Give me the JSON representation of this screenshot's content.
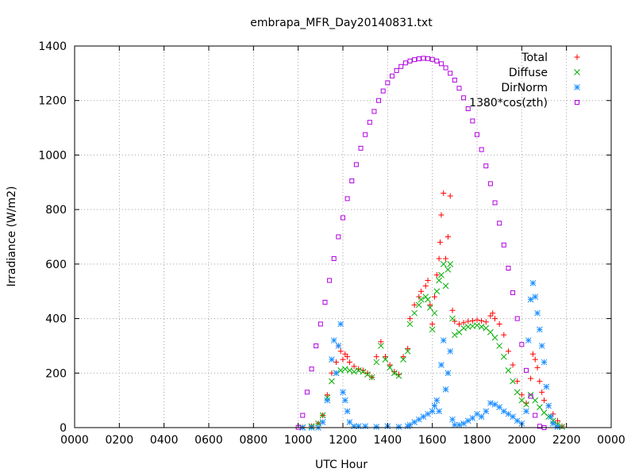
{
  "chart_data": {
    "type": "scatter",
    "title": "embrapa_MFR_Day20140831.txt",
    "xlabel": "UTC Hour",
    "ylabel": "Irradiance (W/m2)",
    "xlim": [
      0,
      24
    ],
    "ylim": [
      0,
      1400
    ],
    "xtick_values": [
      0,
      2,
      4,
      6,
      8,
      10,
      12,
      14,
      16,
      18,
      20,
      22,
      24
    ],
    "xtick_labels": [
      "0000",
      "0200",
      "0400",
      "0600",
      "0800",
      "1000",
      "1200",
      "1400",
      "1600",
      "1800",
      "2000",
      "2200",
      "0000"
    ],
    "ytick_values": [
      0,
      200,
      400,
      600,
      800,
      1000,
      1200,
      1400
    ],
    "ytick_labels": [
      "0",
      "200",
      "400",
      "600",
      "800",
      "1000",
      "1200",
      "1400"
    ],
    "grid": true,
    "legend_position": "top-right",
    "series": [
      {
        "name": "Total",
        "marker": "plus",
        "color": "#ff0000",
        "points": [
          [
            10.2,
            1
          ],
          [
            10.6,
            5
          ],
          [
            10.9,
            15
          ],
          [
            11.1,
            45
          ],
          [
            11.3,
            120
          ],
          [
            11.5,
            200
          ],
          [
            11.7,
            240
          ],
          [
            11.8,
            300
          ],
          [
            11.9,
            280
          ],
          [
            12.0,
            250
          ],
          [
            12.1,
            270
          ],
          [
            12.2,
            260
          ],
          [
            12.3,
            240
          ],
          [
            12.5,
            225
          ],
          [
            12.7,
            215
          ],
          [
            12.9,
            210
          ],
          [
            13.1,
            200
          ],
          [
            13.3,
            185
          ],
          [
            13.5,
            260
          ],
          [
            13.7,
            315
          ],
          [
            13.9,
            260
          ],
          [
            14.1,
            230
          ],
          [
            14.3,
            205
          ],
          [
            14.5,
            195
          ],
          [
            14.7,
            260
          ],
          [
            14.9,
            290
          ],
          [
            15.0,
            400
          ],
          [
            15.2,
            450
          ],
          [
            15.4,
            480
          ],
          [
            15.5,
            500
          ],
          [
            15.7,
            520
          ],
          [
            15.8,
            540
          ],
          [
            15.9,
            450
          ],
          [
            16.0,
            380
          ],
          [
            16.1,
            480
          ],
          [
            16.2,
            560
          ],
          [
            16.3,
            620
          ],
          [
            16.35,
            680
          ],
          [
            16.4,
            780
          ],
          [
            16.5,
            860
          ],
          [
            16.6,
            620
          ],
          [
            16.7,
            700
          ],
          [
            16.8,
            850
          ],
          [
            16.9,
            430
          ],
          [
            17.0,
            390
          ],
          [
            17.2,
            380
          ],
          [
            17.4,
            385
          ],
          [
            17.6,
            390
          ],
          [
            17.8,
            392
          ],
          [
            18.0,
            395
          ],
          [
            18.2,
            392
          ],
          [
            18.4,
            388
          ],
          [
            18.6,
            410
          ],
          [
            18.7,
            420
          ],
          [
            18.8,
            400
          ],
          [
            19.0,
            380
          ],
          [
            19.2,
            340
          ],
          [
            19.4,
            280
          ],
          [
            19.6,
            230
          ],
          [
            19.8,
            170
          ],
          [
            20.0,
            120
          ],
          [
            20.2,
            90
          ],
          [
            20.4,
            180
          ],
          [
            20.5,
            270
          ],
          [
            20.6,
            250
          ],
          [
            20.7,
            220
          ],
          [
            20.8,
            170
          ],
          [
            20.9,
            130
          ],
          [
            21.0,
            100
          ],
          [
            21.2,
            80
          ],
          [
            21.4,
            50
          ],
          [
            21.6,
            25
          ],
          [
            21.8,
            5
          ]
        ]
      },
      {
        "name": "Diffuse",
        "marker": "cross",
        "color": "#00b000",
        "points": [
          [
            10.2,
            1
          ],
          [
            10.6,
            5
          ],
          [
            10.9,
            15
          ],
          [
            11.1,
            45
          ],
          [
            11.3,
            110
          ],
          [
            11.5,
            170
          ],
          [
            11.7,
            200
          ],
          [
            11.9,
            210
          ],
          [
            12.1,
            215
          ],
          [
            12.3,
            210
          ],
          [
            12.5,
            205
          ],
          [
            12.7,
            210
          ],
          [
            12.9,
            205
          ],
          [
            13.1,
            195
          ],
          [
            13.3,
            185
          ],
          [
            13.5,
            240
          ],
          [
            13.7,
            300
          ],
          [
            13.9,
            250
          ],
          [
            14.1,
            220
          ],
          [
            14.3,
            200
          ],
          [
            14.5,
            190
          ],
          [
            14.7,
            250
          ],
          [
            14.9,
            280
          ],
          [
            15.0,
            380
          ],
          [
            15.2,
            420
          ],
          [
            15.4,
            450
          ],
          [
            15.5,
            470
          ],
          [
            15.7,
            480
          ],
          [
            15.8,
            470
          ],
          [
            15.9,
            440
          ],
          [
            16.0,
            360
          ],
          [
            16.1,
            420
          ],
          [
            16.2,
            500
          ],
          [
            16.3,
            540
          ],
          [
            16.4,
            560
          ],
          [
            16.5,
            600
          ],
          [
            16.6,
            520
          ],
          [
            16.7,
            580
          ],
          [
            16.8,
            600
          ],
          [
            16.9,
            400
          ],
          [
            17.0,
            340
          ],
          [
            17.2,
            350
          ],
          [
            17.4,
            365
          ],
          [
            17.6,
            370
          ],
          [
            17.8,
            372
          ],
          [
            18.0,
            375
          ],
          [
            18.2,
            370
          ],
          [
            18.4,
            365
          ],
          [
            18.6,
            350
          ],
          [
            18.8,
            330
          ],
          [
            19.0,
            300
          ],
          [
            19.2,
            260
          ],
          [
            19.4,
            210
          ],
          [
            19.6,
            170
          ],
          [
            19.8,
            130
          ],
          [
            20.0,
            100
          ],
          [
            20.2,
            85
          ],
          [
            20.4,
            120
          ],
          [
            20.6,
            100
          ],
          [
            20.8,
            75
          ],
          [
            21.0,
            55
          ],
          [
            21.2,
            40
          ],
          [
            21.4,
            25
          ],
          [
            21.6,
            12
          ],
          [
            21.8,
            3
          ]
        ]
      },
      {
        "name": "DirNorm",
        "marker": "star",
        "color": "#1e90ff",
        "points": [
          [
            10.2,
            0
          ],
          [
            10.6,
            0
          ],
          [
            10.9,
            0
          ],
          [
            11.1,
            20
          ],
          [
            11.3,
            100
          ],
          [
            11.5,
            250
          ],
          [
            11.6,
            320
          ],
          [
            11.7,
            200
          ],
          [
            11.8,
            300
          ],
          [
            11.9,
            380
          ],
          [
            12.0,
            130
          ],
          [
            12.1,
            100
          ],
          [
            12.2,
            60
          ],
          [
            12.3,
            20
          ],
          [
            12.5,
            5
          ],
          [
            12.7,
            5
          ],
          [
            13.0,
            5
          ],
          [
            13.5,
            3
          ],
          [
            14.0,
            5
          ],
          [
            14.5,
            3
          ],
          [
            14.9,
            5
          ],
          [
            15.0,
            10
          ],
          [
            15.2,
            20
          ],
          [
            15.4,
            30
          ],
          [
            15.6,
            40
          ],
          [
            15.8,
            50
          ],
          [
            16.0,
            60
          ],
          [
            16.1,
            80
          ],
          [
            16.2,
            100
          ],
          [
            16.3,
            60
          ],
          [
            16.4,
            230
          ],
          [
            16.5,
            320
          ],
          [
            16.6,
            140
          ],
          [
            16.7,
            200
          ],
          [
            16.8,
            280
          ],
          [
            16.9,
            30
          ],
          [
            17.0,
            10
          ],
          [
            17.2,
            10
          ],
          [
            17.4,
            15
          ],
          [
            17.6,
            25
          ],
          [
            17.8,
            35
          ],
          [
            18.0,
            50
          ],
          [
            18.2,
            40
          ],
          [
            18.4,
            60
          ],
          [
            18.6,
            90
          ],
          [
            18.8,
            85
          ],
          [
            19.0,
            75
          ],
          [
            19.2,
            60
          ],
          [
            19.4,
            50
          ],
          [
            19.6,
            40
          ],
          [
            19.8,
            25
          ],
          [
            20.0,
            15
          ],
          [
            20.2,
            60
          ],
          [
            20.3,
            320
          ],
          [
            20.4,
            470
          ],
          [
            20.5,
            530
          ],
          [
            20.6,
            480
          ],
          [
            20.7,
            420
          ],
          [
            20.8,
            360
          ],
          [
            20.9,
            300
          ],
          [
            21.0,
            240
          ],
          [
            21.1,
            150
          ],
          [
            21.2,
            80
          ],
          [
            21.3,
            40
          ],
          [
            21.4,
            15
          ],
          [
            21.6,
            3
          ]
        ]
      },
      {
        "name": "1380*cos(zth)",
        "marker": "square",
        "color": "#b000e0",
        "points": [
          [
            10.0,
            1
          ],
          [
            10.2,
            45
          ],
          [
            10.4,
            130
          ],
          [
            10.6,
            215
          ],
          [
            10.8,
            300
          ],
          [
            11.0,
            380
          ],
          [
            11.2,
            460
          ],
          [
            11.4,
            540
          ],
          [
            11.6,
            620
          ],
          [
            11.8,
            700
          ],
          [
            12.0,
            770
          ],
          [
            12.2,
            840
          ],
          [
            12.4,
            905
          ],
          [
            12.6,
            965
          ],
          [
            12.8,
            1025
          ],
          [
            13.0,
            1075
          ],
          [
            13.2,
            1120
          ],
          [
            13.4,
            1160
          ],
          [
            13.6,
            1200
          ],
          [
            13.8,
            1235
          ],
          [
            14.0,
            1265
          ],
          [
            14.2,
            1290
          ],
          [
            14.4,
            1310
          ],
          [
            14.6,
            1325
          ],
          [
            14.8,
            1338
          ],
          [
            15.0,
            1345
          ],
          [
            15.2,
            1350
          ],
          [
            15.4,
            1353
          ],
          [
            15.6,
            1355
          ],
          [
            15.8,
            1354
          ],
          [
            16.0,
            1351
          ],
          [
            16.2,
            1345
          ],
          [
            16.4,
            1335
          ],
          [
            16.6,
            1320
          ],
          [
            16.8,
            1300
          ],
          [
            17.0,
            1275
          ],
          [
            17.2,
            1245
          ],
          [
            17.4,
            1210
          ],
          [
            17.6,
            1170
          ],
          [
            17.8,
            1125
          ],
          [
            18.0,
            1075
          ],
          [
            18.2,
            1020
          ],
          [
            18.4,
            960
          ],
          [
            18.6,
            895
          ],
          [
            18.8,
            825
          ],
          [
            19.0,
            750
          ],
          [
            19.2,
            670
          ],
          [
            19.4,
            585
          ],
          [
            19.6,
            495
          ],
          [
            19.8,
            400
          ],
          [
            20.0,
            305
          ],
          [
            20.2,
            210
          ],
          [
            20.4,
            115
          ],
          [
            20.6,
            45
          ],
          [
            20.8,
            5
          ],
          [
            21.0,
            0
          ]
        ]
      }
    ]
  }
}
